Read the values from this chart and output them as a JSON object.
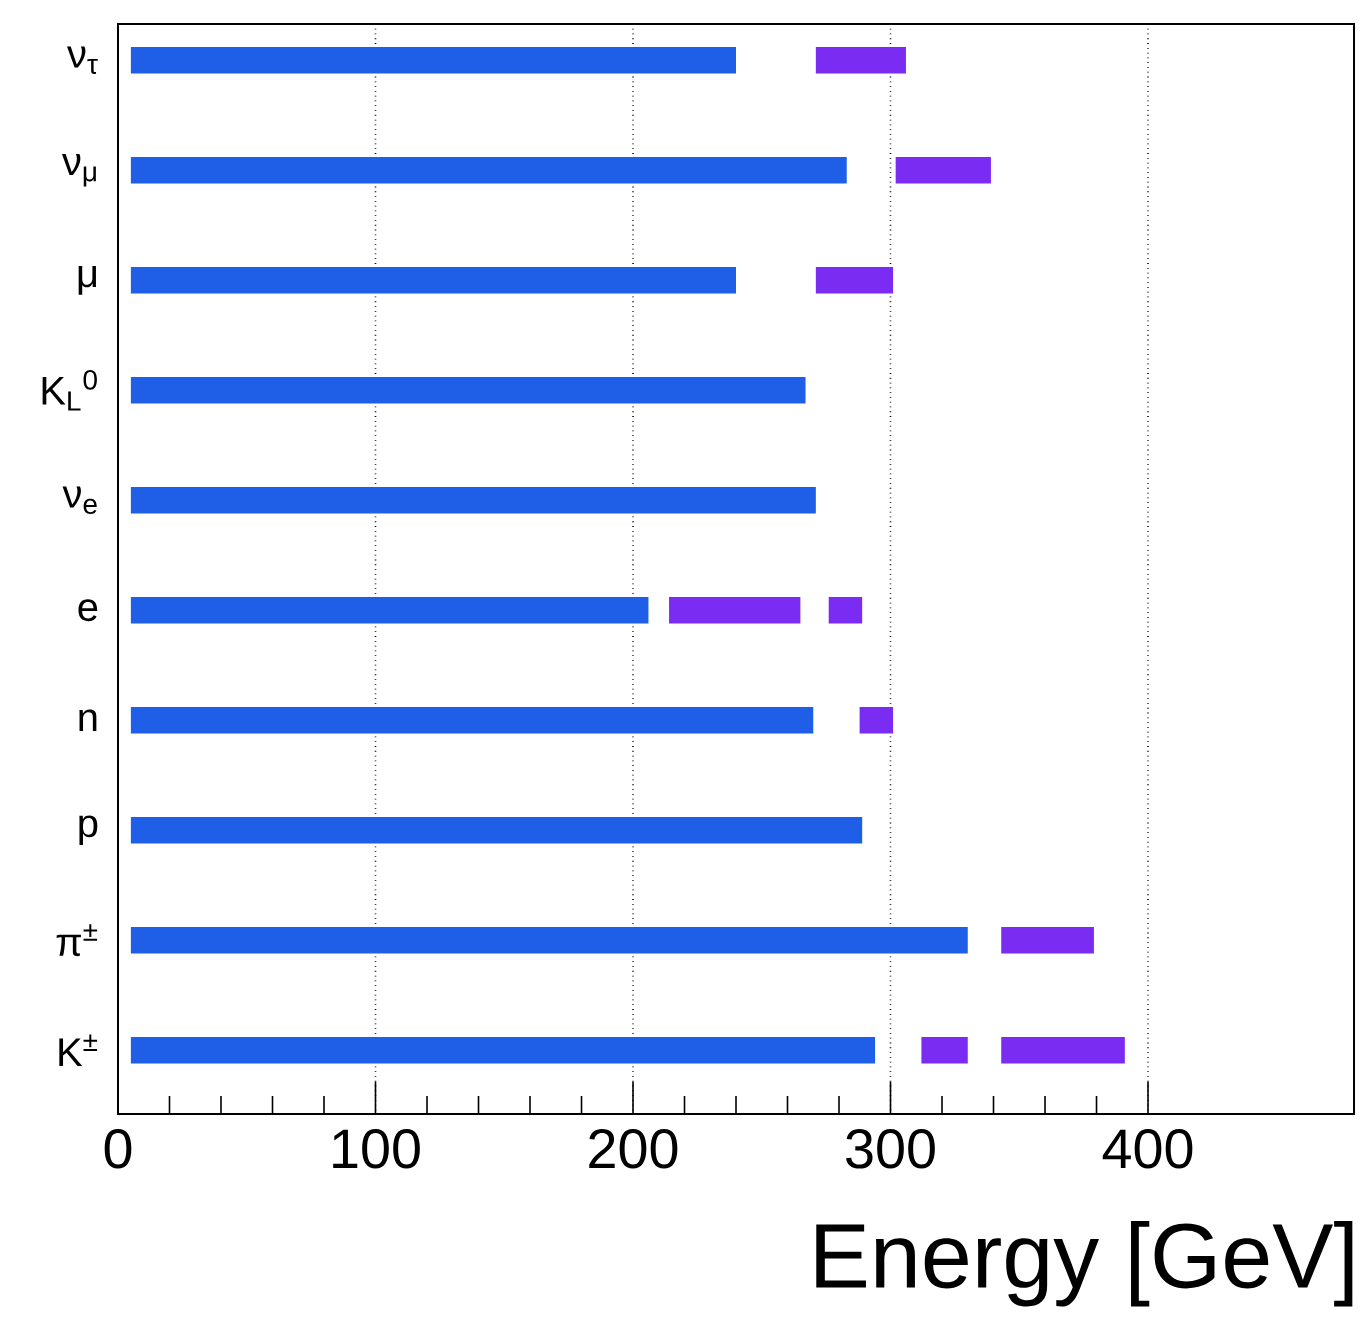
{
  "chart_data": {
    "type": "bar",
    "orientation": "horizontal",
    "xlabel": "Energy [GeV]",
    "categories": [
      "ν$_{τ}$",
      "ν$_{μ}$",
      "μ",
      "K$_{L}$$^{0}$",
      "ν$_{e}$",
      "e",
      "n",
      "p",
      "π$^{±}$",
      "K$^{±}$"
    ],
    "series": [
      {
        "color": "#1f5fe8",
        "base": [
          5,
          5,
          5,
          5,
          5,
          5,
          5,
          5,
          5,
          5
        ],
        "values": [
          235,
          278,
          235,
          262,
          266,
          201,
          265,
          284,
          325,
          289
        ]
      },
      {
        "color": "#7a2cf2",
        "base": [
          271,
          302,
          271,
          null,
          null,
          214,
          288,
          null,
          343,
          312
        ],
        "values": [
          35,
          37,
          30,
          null,
          null,
          51,
          13,
          null,
          36,
          18
        ]
      },
      {
        "color": "#7a2cf2",
        "base": [
          null,
          null,
          null,
          null,
          null,
          276,
          null,
          null,
          null,
          343
        ],
        "values": [
          null,
          null,
          null,
          null,
          null,
          13,
          null,
          null,
          null,
          48
        ]
      }
    ],
    "xlim": [
      0,
      480
    ],
    "xticks": [
      0,
      100,
      200,
      300,
      400
    ],
    "grid": "x"
  }
}
